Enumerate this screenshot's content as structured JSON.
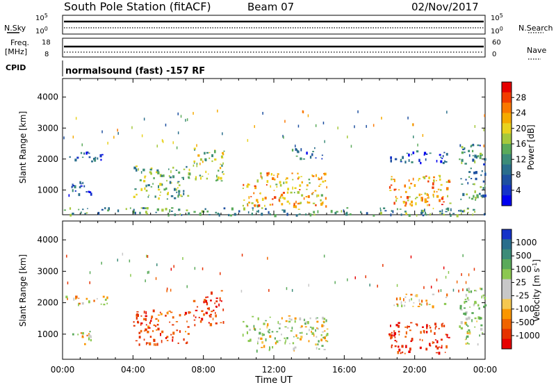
{
  "header": {
    "station": "South Pole Station (fitACF)",
    "beam": "Beam 07",
    "date": "02/Nov/2017"
  },
  "side_labels": {
    "nsky": "N.Sky",
    "freq_line1": "Freq.",
    "freq_line2": "[MHz]",
    "cpid": "CPID",
    "nsearch": "N.Search",
    "nave": "Nave"
  },
  "cpid_text": "normalsound (fast) -157 RF",
  "noise_axis": {
    "left_top": "10^5",
    "left_bottom": "10^0",
    "right_top": "10^5",
    "right_bottom": "10^0"
  },
  "freq_axis": {
    "left_top": "18",
    "left_bottom": "8",
    "right_top": "60",
    "right_bottom": "0"
  },
  "power_panel": {
    "ylabel": "Slant Range [km]",
    "colorbar_label": "Power [dB]",
    "colorbar_ticks": [
      "28",
      "24",
      "20",
      "16",
      "12",
      "8",
      "4"
    ],
    "colorbar_colors": [
      "#e60000",
      "#f23c00",
      "#fa7800",
      "#f5aa00",
      "#e8d21e",
      "#a5c83c",
      "#5aaa5a",
      "#3c8c78",
      "#2a6e8c",
      "#1e50a0",
      "#1432c8",
      "#0000f0"
    ]
  },
  "velocity_panel": {
    "ylabel": "Slant Range [km]",
    "colorbar_label": "Velocity [m s^-1]",
    "colorbar_ticks": [
      "1000",
      "500",
      "100",
      "25",
      "-25",
      "-100",
      "-500",
      "-1000"
    ],
    "colorbar_colors": [
      "#1432c8",
      "#2a6e8c",
      "#3c8c78",
      "#5aaa5a",
      "#8cc850",
      "#c8c8c8",
      "#c8c8c8",
      "#f5c850",
      "#fa9600",
      "#f06400",
      "#e63200",
      "#e60000"
    ]
  },
  "xaxis": {
    "label": "Time UT",
    "ticks": [
      "00:00",
      "04:00",
      "08:00",
      "12:00",
      "16:00",
      "20:00",
      "00:00"
    ]
  },
  "chart_data": [
    {
      "type": "heatmap",
      "title": "Power",
      "xlabel": "Time UT",
      "ylabel": "Slant Range [km]",
      "xlim": [
        0,
        24
      ],
      "ylim": [
        200,
        4600
      ],
      "yticks": [
        1000,
        2000,
        3000,
        4000
      ],
      "colorbar": {
        "label": "Power [dB]",
        "range": [
          0,
          30
        ],
        "ticks": [
          4,
          8,
          12,
          16,
          20,
          24,
          28
        ]
      },
      "clusters": [
        {
          "t0": 0.1,
          "t1": 2.6,
          "r0": 1950,
          "r1": 2250,
          "value": 6
        },
        {
          "t0": 0.2,
          "t1": 1.6,
          "r0": 800,
          "r1": 1300,
          "value": 7
        },
        {
          "t0": 4.0,
          "t1": 7.2,
          "r0": 700,
          "r1": 1800,
          "value": 14
        },
        {
          "t0": 7.4,
          "t1": 9.2,
          "r0": 1300,
          "r1": 2400,
          "value": 16
        },
        {
          "t0": 10.2,
          "t1": 15.0,
          "r0": 500,
          "r1": 1600,
          "value": 20
        },
        {
          "t0": 13.0,
          "t1": 14.8,
          "r0": 2000,
          "r1": 2400,
          "value": 8
        },
        {
          "t0": 18.5,
          "t1": 22.0,
          "r0": 500,
          "r1": 1500,
          "value": 22
        },
        {
          "t0": 18.6,
          "t1": 21.8,
          "r0": 1900,
          "r1": 2300,
          "value": 6
        },
        {
          "t0": 22.5,
          "t1": 24.0,
          "r0": 700,
          "r1": 2500,
          "value": 10
        },
        {
          "t0": 0.0,
          "t1": 24.0,
          "r0": 200,
          "r1": 450,
          "value": 12
        }
      ]
    },
    {
      "type": "heatmap",
      "title": "Velocity",
      "xlabel": "Time UT",
      "ylabel": "Slant Range [km]",
      "xlim": [
        0,
        24
      ],
      "ylim": [
        200,
        4600
      ],
      "yticks": [
        1000,
        2000,
        3000,
        4000
      ],
      "colorbar": {
        "label": "Velocity [m s^-1]",
        "range": [
          -1000,
          1000
        ],
        "ticks": [
          1000,
          500,
          100,
          25,
          -25,
          -100,
          -500,
          -1000
        ]
      },
      "clusters": [
        {
          "t0": 0.1,
          "t1": 2.6,
          "r0": 1950,
          "r1": 2250,
          "value": 0
        },
        {
          "t0": 0.5,
          "t1": 1.6,
          "r0": 700,
          "r1": 1200,
          "value": 50
        },
        {
          "t0": 4.0,
          "t1": 7.2,
          "r0": 700,
          "r1": 1800,
          "value": -300
        },
        {
          "t0": 7.4,
          "t1": 9.2,
          "r0": 1300,
          "r1": 2400,
          "value": -400
        },
        {
          "t0": 10.2,
          "t1": 15.0,
          "r0": 500,
          "r1": 1600,
          "value": 150
        },
        {
          "t0": 18.5,
          "t1": 22.0,
          "r0": 400,
          "r1": 1400,
          "value": -400
        },
        {
          "t0": 18.6,
          "t1": 21.8,
          "r0": 1900,
          "r1": 2300,
          "value": 0
        },
        {
          "t0": 22.5,
          "t1": 24.0,
          "r0": 700,
          "r1": 2500,
          "value": 200
        }
      ]
    }
  ]
}
